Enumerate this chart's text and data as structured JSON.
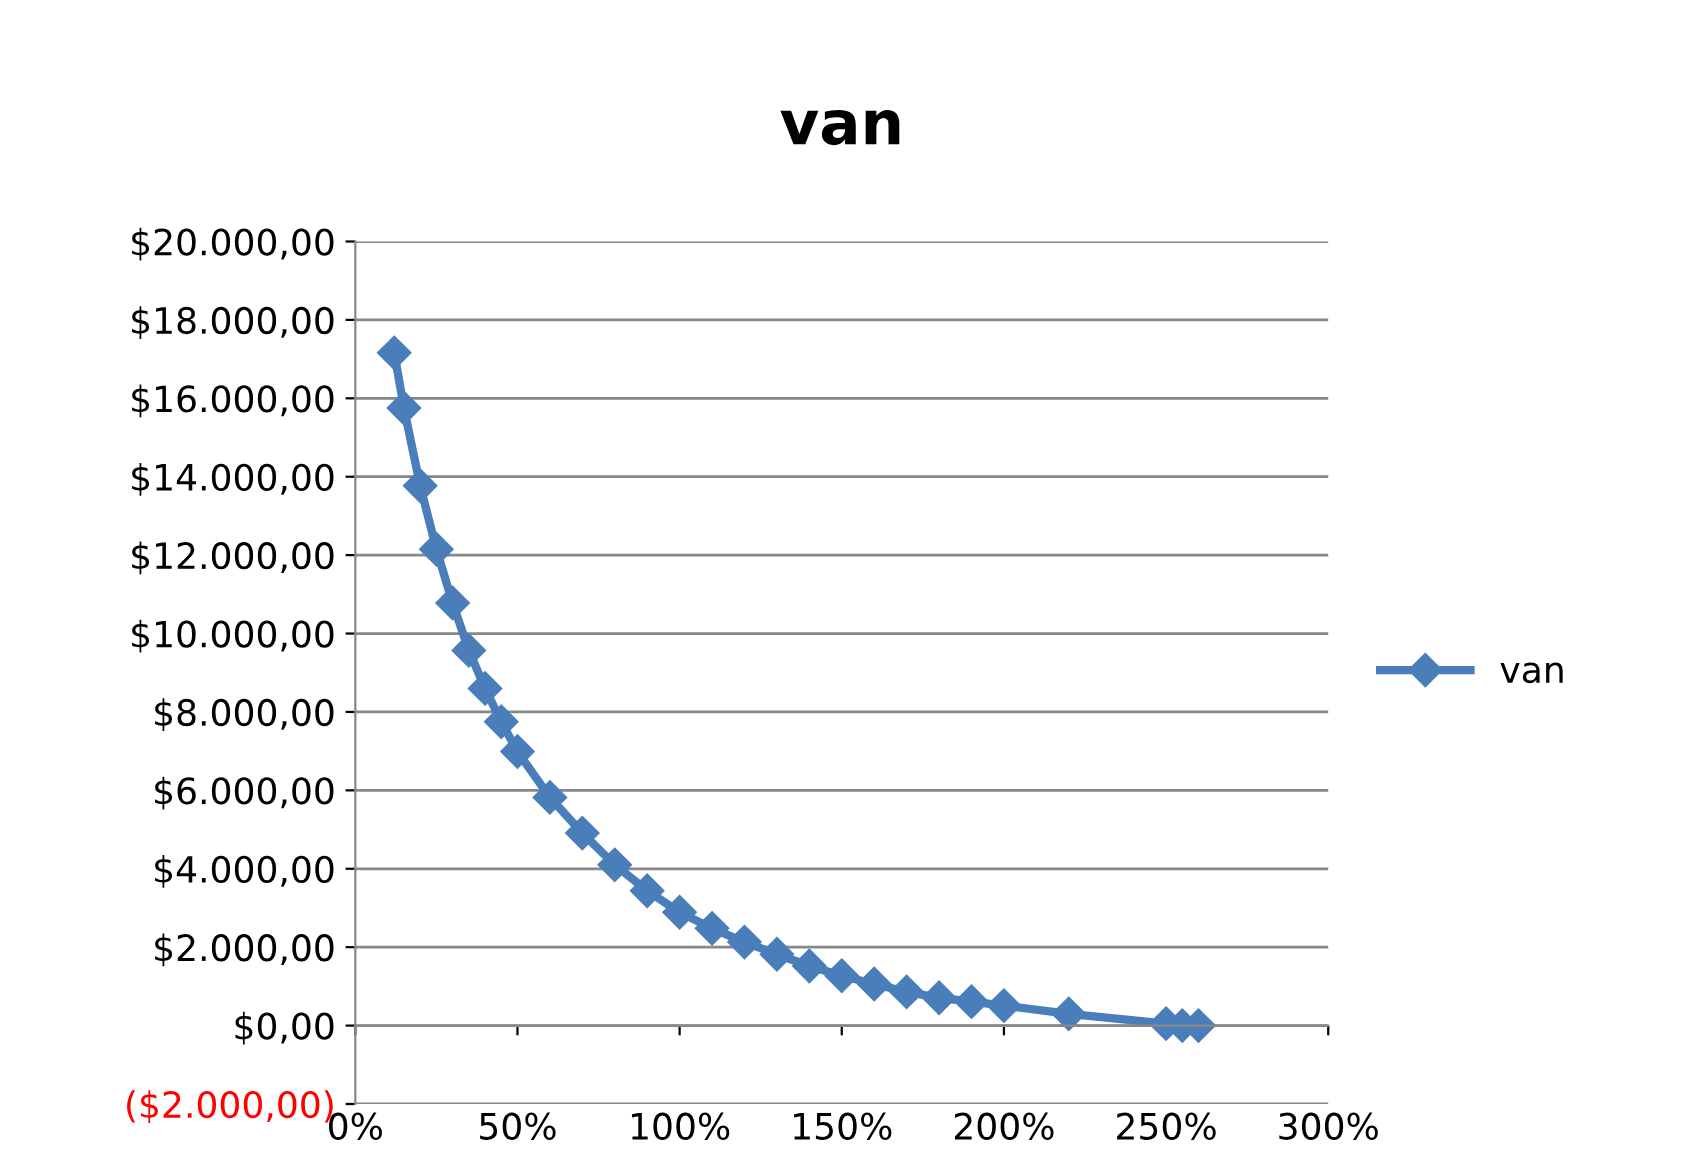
{
  "chart_data": {
    "type": "line",
    "title": "van",
    "x": [
      12,
      15,
      20,
      25,
      30,
      35,
      40,
      45,
      50,
      60,
      70,
      80,
      90,
      100,
      110,
      120,
      130,
      140,
      150,
      160,
      170,
      180,
      190,
      200,
      220,
      250,
      255,
      260
    ],
    "series": [
      {
        "name": "van",
        "color": "#4a7ebb",
        "values": [
          17160,
          15750,
          13770,
          12150,
          10780,
          9570,
          8600,
          7750,
          6990,
          5820,
          4910,
          4100,
          3440,
          2890,
          2480,
          2130,
          1820,
          1520,
          1270,
          1060,
          860,
          710,
          610,
          510,
          300,
          50,
          0,
          0
        ]
      }
    ],
    "xlim": [
      0,
      300
    ],
    "xticks": [
      {
        "value": 0,
        "label": "0%"
      },
      {
        "value": 50,
        "label": "50%"
      },
      {
        "value": 100,
        "label": "100%"
      },
      {
        "value": 150,
        "label": "150%"
      },
      {
        "value": 200,
        "label": "200%"
      },
      {
        "value": 250,
        "label": "250%"
      },
      {
        "value": 300,
        "label": "300%"
      }
    ],
    "ylim": [
      -2000,
      20000
    ],
    "yticks": [
      {
        "value": -2000,
        "label": "($2.000,00)"
      },
      {
        "value": 0,
        "label": "$0,00"
      },
      {
        "value": 2000,
        "label": "$2.000,00"
      },
      {
        "value": 4000,
        "label": "$4.000,00"
      },
      {
        "value": 6000,
        "label": "$6.000,00"
      },
      {
        "value": 8000,
        "label": "$8.000,00"
      },
      {
        "value": 10000,
        "label": "$10.000,00"
      },
      {
        "value": 12000,
        "label": "$12.000,00"
      },
      {
        "value": 14000,
        "label": "$14.000,00"
      },
      {
        "value": 16000,
        "label": "$16.000,00"
      },
      {
        "value": 18000,
        "label": "$18.000,00"
      },
      {
        "value": 20000,
        "label": "$20.000,00"
      }
    ],
    "grid": "y",
    "legend": "right",
    "marker": "diamond",
    "line_style": "solid"
  }
}
